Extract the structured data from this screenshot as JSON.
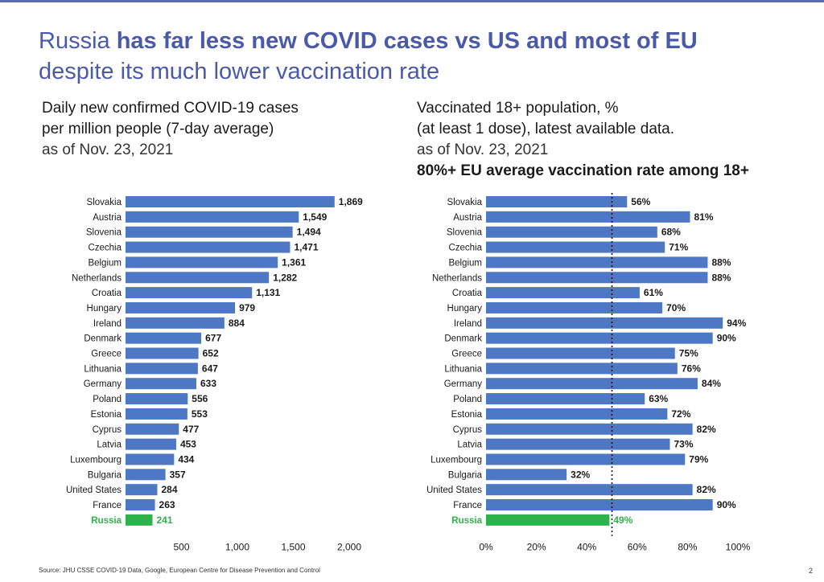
{
  "title": {
    "part1": "Russia ",
    "part2": "has far less new COVID cases vs US and most of EU",
    "line2": "despite its much lower vaccination rate"
  },
  "left_panel": {
    "line1": "Daily new confirmed COVID-19 cases",
    "line2": "per million people (7-day average)",
    "line3": "as of Nov. 23, 2021"
  },
  "right_panel": {
    "line1": "Vaccinated 18+ population, %",
    "line2": "(at least 1 dose), latest available data.",
    "line3": "as of Nov. 23, 2021",
    "line4": "80%+ EU average vaccination rate among 18+"
  },
  "source": "Source:  JHU CSSE COVID-19 Data, Google, European Centre for Disease Prevention and Control",
  "page_number": "2",
  "colors": {
    "bar": "#4f78c4",
    "highlight": "#2fb24b",
    "title": "#4a5aa8"
  },
  "chart_data": [
    {
      "type": "bar",
      "orientation": "horizontal",
      "title": "Daily new confirmed COVID-19 cases per million people (7-day average)",
      "categories": [
        "Slovakia",
        "Austria",
        "Slovenia",
        "Czechia",
        "Belgium",
        "Netherlands",
        "Croatia",
        "Hungary",
        "Ireland",
        "Denmark",
        "Greece",
        "Lithuania",
        "Germany",
        "Poland",
        "Estonia",
        "Cyprus",
        "Latvia",
        "Luxembourg",
        "Bulgaria",
        "United States",
        "France",
        "Russia"
      ],
      "values": [
        1869,
        1549,
        1494,
        1471,
        1361,
        1282,
        1131,
        979,
        884,
        677,
        652,
        647,
        633,
        556,
        553,
        477,
        453,
        434,
        357,
        284,
        263,
        241
      ],
      "value_labels": [
        "1,869",
        "1,549",
        "1,494",
        "1,471",
        "1,361",
        "1,282",
        "1,131",
        "979",
        "884",
        "677",
        "652",
        "647",
        "633",
        "556",
        "553",
        "477",
        "453",
        "434",
        "357",
        "284",
        "263",
        "241"
      ],
      "highlight": "Russia",
      "xlim": [
        0,
        2000
      ],
      "xticks": [
        500,
        1000,
        1500,
        2000
      ],
      "xtick_labels": [
        "500",
        "1,000",
        "1,500",
        "2,000"
      ],
      "grid": false,
      "legend": "none"
    },
    {
      "type": "bar",
      "orientation": "horizontal",
      "title": "Vaccinated 18+ population, % (at least 1 dose)",
      "categories": [
        "Slovakia",
        "Austria",
        "Slovenia",
        "Czechia",
        "Belgium",
        "Netherlands",
        "Croatia",
        "Hungary",
        "Ireland",
        "Denmark",
        "Greece",
        "Lithuania",
        "Germany",
        "Poland",
        "Estonia",
        "Cyprus",
        "Latvia",
        "Luxembourg",
        "Bulgaria",
        "United States",
        "France",
        "Russia"
      ],
      "values": [
        56,
        81,
        68,
        71,
        88,
        88,
        61,
        70,
        94,
        90,
        75,
        76,
        84,
        63,
        72,
        82,
        73,
        79,
        32,
        82,
        90,
        49
      ],
      "value_labels": [
        "56%",
        "81%",
        "68%",
        "71%",
        "88%",
        "88%",
        "61%",
        "70%",
        "94%",
        "90%",
        "75%",
        "76%",
        "84%",
        "63%",
        "72%",
        "82%",
        "73%",
        "79%",
        "32%",
        "82%",
        "90%",
        "49%"
      ],
      "highlight": "Russia",
      "xlim": [
        0,
        100
      ],
      "xticks": [
        0,
        20,
        40,
        60,
        80,
        100
      ],
      "xtick_labels": [
        "0%",
        "20%",
        "40%",
        "60%",
        "80%",
        "100%"
      ],
      "reference_line": 50,
      "grid": false,
      "legend": "none"
    }
  ]
}
